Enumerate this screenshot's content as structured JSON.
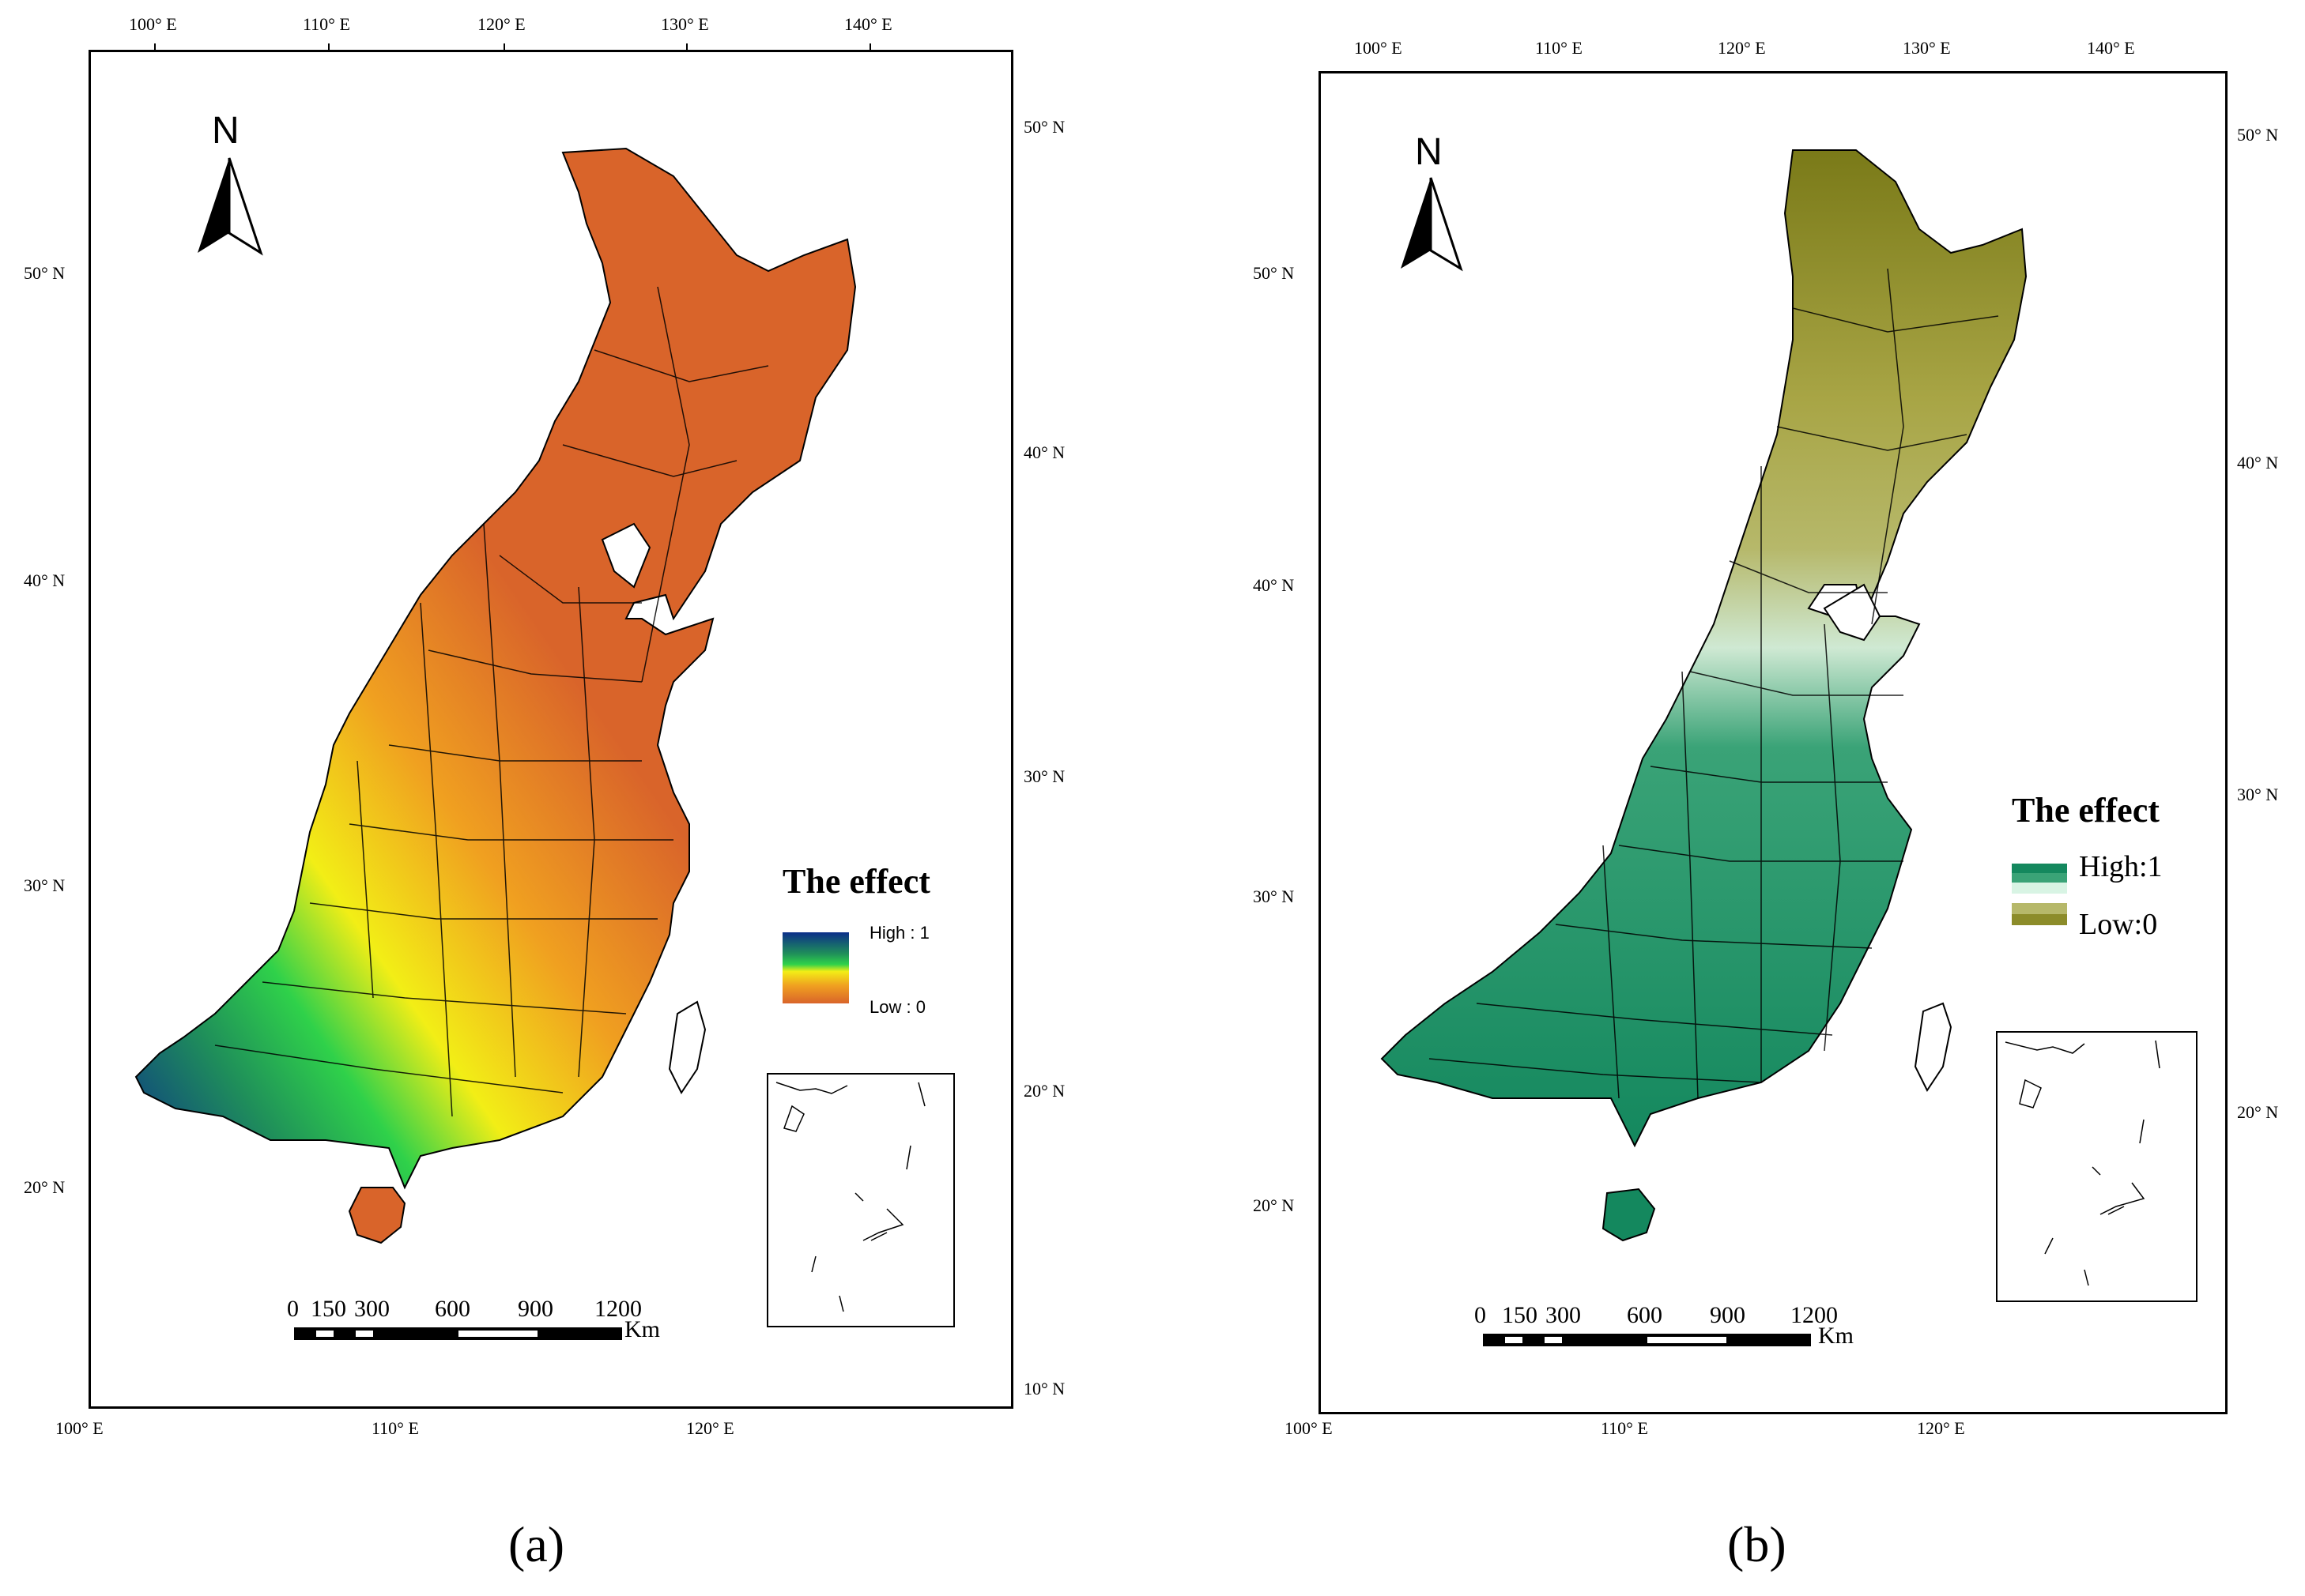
{
  "panels": [
    {
      "id": "a",
      "caption": "(a)",
      "top_lon_labels": [
        "100° E",
        "110° E",
        "120° E",
        "130° E",
        "140° E"
      ],
      "bottom_lon_labels": [
        "100° E",
        "110° E",
        "120° E"
      ],
      "left_lat_labels": [
        "50° N",
        "40° N",
        "30° N",
        "20° N"
      ],
      "right_lat_labels": [
        "50° N",
        "40° N",
        "30° N",
        "20° N",
        "10° N"
      ],
      "north_label": "N",
      "legend": {
        "title": "The effect",
        "high_label": "High : 1",
        "low_label": "Low : 0",
        "colors": [
          "#0b2e8a",
          "#1f8f5a",
          "#2fd14a",
          "#f2ee16",
          "#f0a020",
          "#d9642a"
        ]
      },
      "scale": {
        "labels": [
          "0",
          "150",
          "300",
          "600",
          "900",
          "1200"
        ],
        "unit": "Km"
      }
    },
    {
      "id": "b",
      "caption": "(b)",
      "top_lon_labels": [
        "100° E",
        "110° E",
        "120° E",
        "130° E",
        "140° E"
      ],
      "bottom_lon_labels": [
        "100° E",
        "110° E",
        "120° E"
      ],
      "left_lat_labels": [
        "50° N",
        "40° N",
        "30° N",
        "20° N"
      ],
      "right_lat_labels": [
        "50° N",
        "40° N",
        "30° N",
        "20° N"
      ],
      "north_label": "N",
      "legend": {
        "title": "The effect",
        "high_label": "High:1",
        "low_label": "Low:0",
        "colors": [
          "#14885e",
          "#d8f4e4",
          "#8c8c2a"
        ]
      },
      "scale": {
        "labels": [
          "0",
          "150",
          "300",
          "600",
          "900",
          "1200"
        ],
        "unit": "Km"
      }
    }
  ]
}
